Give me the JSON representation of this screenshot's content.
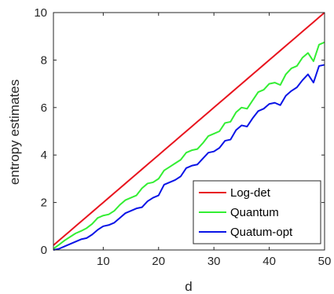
{
  "chart_data": {
    "type": "line",
    "xlabel": "d",
    "ylabel": "entropy estimates",
    "xlim": [
      1,
      50
    ],
    "ylim": [
      0,
      10
    ],
    "xticks": [
      10,
      20,
      30,
      40,
      50
    ],
    "yticks": [
      0,
      2,
      4,
      6,
      8,
      10
    ],
    "grid": false,
    "legend_position": "bottom-right",
    "x": [
      1,
      2,
      3,
      4,
      5,
      6,
      7,
      8,
      9,
      10,
      11,
      12,
      13,
      14,
      15,
      16,
      17,
      18,
      19,
      20,
      21,
      22,
      23,
      24,
      25,
      26,
      27,
      28,
      29,
      30,
      31,
      32,
      33,
      34,
      35,
      36,
      37,
      38,
      39,
      40,
      41,
      42,
      43,
      44,
      45,
      46,
      47,
      48,
      49,
      50
    ],
    "series": [
      {
        "name": "Log-det",
        "color": "#e8141e",
        "values": [
          0.2,
          0.4,
          0.6,
          0.8,
          1.0,
          1.2,
          1.4,
          1.6,
          1.8,
          2.0,
          2.2,
          2.4,
          2.6,
          2.8,
          3.0,
          3.2,
          3.4,
          3.6,
          3.8,
          4.0,
          4.2,
          4.4,
          4.6,
          4.8,
          5.0,
          5.2,
          5.4,
          5.6,
          5.8,
          6.0,
          6.2,
          6.4,
          6.6,
          6.8,
          7.0,
          7.2,
          7.4,
          7.6,
          7.8,
          8.0,
          8.2,
          8.4,
          8.6,
          8.8,
          9.0,
          9.2,
          9.4,
          9.6,
          9.8,
          10.0
        ]
      },
      {
        "name": "Quantum",
        "color": "#33ee33",
        "values": [
          0.05,
          0.22,
          0.4,
          0.55,
          0.7,
          0.8,
          0.92,
          1.1,
          1.35,
          1.45,
          1.5,
          1.65,
          1.9,
          2.1,
          2.2,
          2.3,
          2.6,
          2.8,
          2.85,
          3.0,
          3.35,
          3.5,
          3.65,
          3.8,
          4.1,
          4.2,
          4.25,
          4.5,
          4.8,
          4.9,
          5.0,
          5.35,
          5.4,
          5.8,
          6.0,
          5.95,
          6.3,
          6.65,
          6.75,
          7.0,
          7.05,
          6.95,
          7.4,
          7.65,
          7.75,
          8.1,
          8.3,
          7.95,
          8.65,
          8.75
        ]
      },
      {
        "name": "Quatum-opt",
        "color": "#0a14e6",
        "values": [
          0.0,
          0.05,
          0.15,
          0.25,
          0.35,
          0.45,
          0.5,
          0.65,
          0.85,
          1.0,
          1.05,
          1.15,
          1.35,
          1.55,
          1.65,
          1.75,
          1.8,
          2.05,
          2.2,
          2.3,
          2.75,
          2.85,
          2.95,
          3.1,
          3.45,
          3.55,
          3.6,
          3.85,
          4.1,
          4.15,
          4.3,
          4.6,
          4.65,
          5.05,
          5.25,
          5.2,
          5.55,
          5.85,
          5.95,
          6.15,
          6.2,
          6.1,
          6.5,
          6.7,
          6.85,
          7.15,
          7.4,
          7.05,
          7.75,
          7.8
        ]
      }
    ]
  }
}
